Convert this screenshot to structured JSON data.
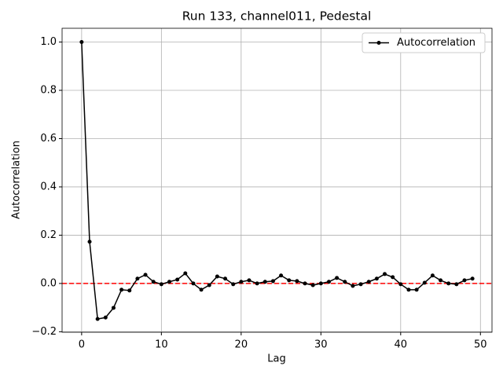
{
  "chart_data": {
    "type": "line",
    "title": "Run 133, channel011, Pedestal",
    "xlabel": "Lag",
    "ylabel": "Autocorrelation",
    "x": [
      0,
      1,
      2,
      3,
      4,
      5,
      6,
      7,
      8,
      9,
      10,
      11,
      12,
      13,
      14,
      15,
      16,
      17,
      18,
      19,
      20,
      21,
      22,
      23,
      24,
      25,
      26,
      27,
      28,
      29,
      30,
      31,
      32,
      33,
      34,
      35,
      36,
      37,
      38,
      39,
      40,
      41,
      42,
      43,
      44,
      45,
      46,
      47,
      48,
      49
    ],
    "series": [
      {
        "name": "Autocorrelation",
        "color": "#000000",
        "values": [
          1.0,
          0.173,
          -0.147,
          -0.141,
          -0.101,
          -0.026,
          -0.029,
          0.02,
          0.036,
          0.007,
          -0.003,
          0.007,
          0.016,
          0.042,
          0.0,
          -0.026,
          -0.007,
          0.029,
          0.02,
          -0.003,
          0.007,
          0.013,
          0.0,
          0.007,
          0.01,
          0.033,
          0.013,
          0.01,
          0.0,
          -0.007,
          0.0,
          0.007,
          0.023,
          0.007,
          -0.01,
          -0.003,
          0.007,
          0.02,
          0.039,
          0.026,
          -0.003,
          -0.026,
          -0.026,
          0.003,
          0.033,
          0.013,
          0.0,
          -0.003,
          0.013,
          0.02
        ]
      }
    ],
    "reference_line": {
      "value": 0,
      "color": "#ff0000"
    },
    "xlim": [
      -2.45,
      51.45
    ],
    "xticks": [
      0,
      10,
      20,
      30,
      40,
      50
    ],
    "ylim": [
      -0.202,
      1.057
    ],
    "yticks": [
      {
        "value": -0.2,
        "label": "−0.2"
      },
      {
        "value": 0,
        "label": "0.0"
      },
      {
        "value": 0.2,
        "label": "0.2"
      },
      {
        "value": 0.4,
        "label": "0.4"
      },
      {
        "value": 0.6,
        "label": "0.6"
      },
      {
        "value": 0.8,
        "label": "0.8"
      },
      {
        "value": 1.0,
        "label": "1.0"
      }
    ],
    "grid": true,
    "legend": "upper right"
  }
}
